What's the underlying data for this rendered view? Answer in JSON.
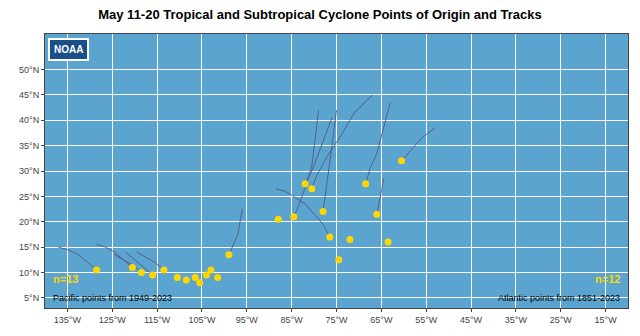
{
  "chart_data": {
    "type": "line",
    "title": "May 11-20 Tropical and Subtropical Cyclone Points of Origin and Tracks",
    "xlim": [
      -140,
      -10
    ],
    "ylim": [
      3,
      57
    ],
    "xticks": [
      {
        "value": -135,
        "label": "135°W"
      },
      {
        "value": -125,
        "label": "125°W"
      },
      {
        "value": -115,
        "label": "115°W"
      },
      {
        "value": -105,
        "label": "105°W"
      },
      {
        "value": -95,
        "label": "95°W"
      },
      {
        "value": -85,
        "label": "85°W"
      },
      {
        "value": -75,
        "label": "75°W"
      },
      {
        "value": -65,
        "label": "65°W"
      },
      {
        "value": -55,
        "label": "55°W"
      },
      {
        "value": -45,
        "label": "45°W"
      },
      {
        "value": -35,
        "label": "35°W"
      },
      {
        "value": -25,
        "label": "25°W"
      },
      {
        "value": -15,
        "label": "15°W"
      }
    ],
    "yticks": [
      {
        "value": 5,
        "label": "5°N"
      },
      {
        "value": 10,
        "label": "10°N"
      },
      {
        "value": 15,
        "label": "15°N"
      },
      {
        "value": 20,
        "label": "20°N"
      },
      {
        "value": 25,
        "label": "25°N"
      },
      {
        "value": 30,
        "label": "30°N"
      },
      {
        "value": 35,
        "label": "35°N"
      },
      {
        "value": 40,
        "label": "40°N"
      },
      {
        "value": 45,
        "label": "45°N"
      },
      {
        "value": 50,
        "label": "50°N"
      }
    ],
    "grid": true,
    "series": [
      {
        "type": "line",
        "color": "#555577",
        "x": [
          -128.5,
          -130.5,
          -132.5,
          -135.0,
          -137.0
        ],
        "values": [
          10.5,
          12.0,
          13.5,
          14.5,
          15.0
        ]
      },
      {
        "type": "line",
        "color": "#555577",
        "x": [
          -120.5,
          -122.5,
          -124.5,
          -126.5,
          -128.5
        ],
        "values": [
          11.0,
          12.5,
          14.0,
          15.0,
          15.5
        ]
      },
      {
        "type": "line",
        "color": "#555577",
        "x": [
          -118.5,
          -120.5,
          -122.5,
          -124.5
        ],
        "values": [
          10.0,
          11.5,
          12.5,
          13.5
        ]
      },
      {
        "type": "line",
        "color": "#555577",
        "x": [
          -116.0,
          -118.0,
          -120.0,
          -122.0
        ],
        "values": [
          9.5,
          11.0,
          12.5,
          14.0
        ]
      },
      {
        "type": "line",
        "color": "#555577",
        "x": [
          -113.5,
          -115.5,
          -117.5,
          -119.5
        ],
        "values": [
          10.5,
          12.0,
          13.0,
          14.0
        ]
      },
      {
        "type": "line",
        "color": "#555577",
        "x": [
          -99.0,
          -98.0,
          -97.0,
          -96.5,
          -96.0
        ],
        "values": [
          13.5,
          15.5,
          17.5,
          20.0,
          22.5
        ]
      },
      {
        "type": "line",
        "color": "#555577",
        "x": [
          -80.5,
          -79.5,
          -77.0,
          -74.0,
          -71.0,
          -67.0
        ],
        "values": [
          26.5,
          29.0,
          33.0,
          37.0,
          41.5,
          45.0
        ]
      },
      {
        "type": "line",
        "color": "#555577",
        "x": [
          -82.0,
          -80.5,
          -79.0,
          -77.5,
          -76.0
        ],
        "values": [
          27.5,
          30.0,
          33.5,
          37.0,
          40.5
        ]
      },
      {
        "type": "line",
        "color": "#555577",
        "x": [
          -68.5,
          -67.5,
          -66.0,
          -65.0,
          -64.0,
          -63.0
        ],
        "values": [
          27.5,
          30.5,
          33.5,
          37.0,
          40.5,
          43.5
        ]
      },
      {
        "type": "line",
        "color": "#555577",
        "x": [
          -78.0,
          -77.5,
          -77.0,
          -76.5,
          -76.0,
          -75.5,
          -75.0
        ],
        "values": [
          22.0,
          25.0,
          28.0,
          31.5,
          35.0,
          38.5,
          42.0
        ]
      },
      {
        "type": "line",
        "color": "#555577",
        "x": [
          -84.5,
          -83.5,
          -82.5,
          -81.5,
          -80.5,
          -80.0,
          -79.5,
          -79.0
        ],
        "values": [
          21.0,
          23.0,
          25.5,
          28.0,
          31.0,
          34.5,
          38.0,
          42.0
        ]
      },
      {
        "type": "line",
        "color": "#555577",
        "x": [
          -60.5,
          -58.5,
          -56.0,
          -53.0
        ],
        "values": [
          32.0,
          34.0,
          36.5,
          38.5
        ]
      },
      {
        "type": "line",
        "color": "#555577",
        "x": [
          -66.0,
          -65.5,
          -65.0,
          -64.5
        ],
        "values": [
          21.5,
          23.5,
          26.0,
          28.5
        ]
      },
      {
        "type": "line",
        "color": "#555577",
        "x": [
          -76.5,
          -78.0,
          -80.0,
          -82.0,
          -84.5,
          -86.5,
          -88.5
        ],
        "values": [
          17.0,
          19.5,
          21.5,
          23.5,
          25.0,
          26.0,
          26.5
        ]
      },
      {
        "type": "scatter",
        "color": "#FFD700",
        "x": [
          -128.5,
          -120.5,
          -118.5,
          -116.0,
          -113.5,
          -110.5,
          -108.5,
          -106.5,
          -105.5,
          -104.0,
          -103.0,
          -101.5,
          -99.0
        ],
        "values": [
          10.5,
          11.0,
          10.0,
          9.5,
          10.5,
          9.0,
          8.5,
          9.0,
          8.0,
          9.5,
          10.5,
          9.0,
          13.5
        ]
      },
      {
        "type": "scatter",
        "color": "#FFD700",
        "x": [
          -88.0,
          -84.5,
          -82.0,
          -80.5,
          -78.0,
          -76.5,
          -74.5,
          -72.0,
          -68.5,
          -66.0,
          -63.5,
          -60.5
        ],
        "values": [
          20.5,
          21.0,
          27.5,
          26.5,
          22.0,
          17.0,
          12.5,
          16.5,
          27.5,
          21.5,
          16.0,
          32.0
        ]
      }
    ],
    "annotations": [
      {
        "text": "n=13",
        "color": "#FFD700"
      },
      {
        "text": "Pacific points from 1949-2023",
        "color": "black"
      },
      {
        "text": "n=12",
        "color": "#FFD700"
      },
      {
        "text": "Atlantic points from 1851-2023",
        "color": "black"
      },
      {
        "text": "NOAA",
        "color": "white"
      }
    ]
  }
}
